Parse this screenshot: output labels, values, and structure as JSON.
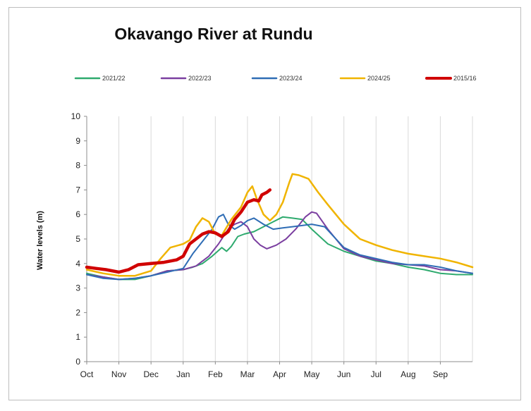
{
  "chart_data": {
    "type": "line",
    "title": "Okavango River at Rundu",
    "xlabel": "",
    "ylabel": "Water levels (m)",
    "ylim": [
      0,
      10
    ],
    "yticks": [
      0,
      1,
      2,
      3,
      4,
      5,
      6,
      7,
      8,
      9,
      10
    ],
    "categories": [
      "Oct",
      "Nov",
      "Dec",
      "Jan",
      "Feb",
      "Mar",
      "Apr",
      "May",
      "Jun",
      "Jul",
      "Aug",
      "Sep"
    ],
    "grid": "vertical",
    "legend_position": "top",
    "x_unit": "months since 1 October",
    "series": [
      {
        "name": "2021/22",
        "color": "#2eaa6e",
        "width": 2,
        "points": [
          [
            0,
            3.6
          ],
          [
            0.5,
            3.45
          ],
          [
            1,
            3.35
          ],
          [
            1.5,
            3.35
          ],
          [
            2,
            3.5
          ],
          [
            2.5,
            3.7
          ],
          [
            3,
            3.75
          ],
          [
            3.3,
            3.85
          ],
          [
            3.6,
            4.0
          ],
          [
            3.9,
            4.3
          ],
          [
            4.2,
            4.65
          ],
          [
            4.35,
            4.5
          ],
          [
            4.5,
            4.7
          ],
          [
            4.7,
            5.1
          ],
          [
            4.9,
            5.2
          ],
          [
            5.2,
            5.3
          ],
          [
            5.5,
            5.5
          ],
          [
            5.8,
            5.7
          ],
          [
            6.1,
            5.9
          ],
          [
            6.4,
            5.85
          ],
          [
            6.7,
            5.8
          ],
          [
            7.0,
            5.4
          ],
          [
            7.5,
            4.8
          ],
          [
            8.0,
            4.5
          ],
          [
            8.5,
            4.3
          ],
          [
            9.0,
            4.1
          ],
          [
            9.5,
            4.0
          ],
          [
            10,
            3.85
          ],
          [
            10.5,
            3.75
          ],
          [
            11,
            3.6
          ],
          [
            11.5,
            3.55
          ],
          [
            12,
            3.55
          ]
        ]
      },
      {
        "name": "2022/23",
        "color": "#7b3fa0",
        "width": 2,
        "points": [
          [
            0,
            3.55
          ],
          [
            0.5,
            3.45
          ],
          [
            1,
            3.35
          ],
          [
            1.5,
            3.4
          ],
          [
            2,
            3.5
          ],
          [
            2.5,
            3.7
          ],
          [
            3,
            3.75
          ],
          [
            3.4,
            3.9
          ],
          [
            3.8,
            4.3
          ],
          [
            4.1,
            4.8
          ],
          [
            4.4,
            5.4
          ],
          [
            4.6,
            5.6
          ],
          [
            4.8,
            5.7
          ],
          [
            5.0,
            5.5
          ],
          [
            5.2,
            5.0
          ],
          [
            5.4,
            4.75
          ],
          [
            5.6,
            4.6
          ],
          [
            5.9,
            4.75
          ],
          [
            6.2,
            5.0
          ],
          [
            6.5,
            5.4
          ],
          [
            6.8,
            5.9
          ],
          [
            7.0,
            6.1
          ],
          [
            7.15,
            6.05
          ],
          [
            7.5,
            5.4
          ],
          [
            8.0,
            4.6
          ],
          [
            8.5,
            4.3
          ],
          [
            9.0,
            4.15
          ],
          [
            9.5,
            4.0
          ],
          [
            10,
            3.95
          ],
          [
            10.5,
            3.9
          ],
          [
            11,
            3.75
          ],
          [
            11.5,
            3.7
          ],
          [
            12,
            3.6
          ]
        ]
      },
      {
        "name": "2023/24",
        "color": "#2f6db5",
        "width": 2,
        "points": [
          [
            0,
            3.55
          ],
          [
            0.5,
            3.4
          ],
          [
            1,
            3.35
          ],
          [
            1.5,
            3.4
          ],
          [
            2,
            3.5
          ],
          [
            2.5,
            3.65
          ],
          [
            3,
            3.8
          ],
          [
            3.3,
            4.4
          ],
          [
            3.6,
            4.9
          ],
          [
            3.9,
            5.4
          ],
          [
            4.1,
            5.9
          ],
          [
            4.25,
            6.0
          ],
          [
            4.4,
            5.6
          ],
          [
            4.6,
            5.4
          ],
          [
            4.8,
            5.55
          ],
          [
            5.0,
            5.75
          ],
          [
            5.2,
            5.85
          ],
          [
            5.5,
            5.6
          ],
          [
            5.8,
            5.4
          ],
          [
            6.1,
            5.45
          ],
          [
            6.4,
            5.5
          ],
          [
            6.7,
            5.55
          ],
          [
            7.0,
            5.6
          ],
          [
            7.4,
            5.5
          ],
          [
            8.0,
            4.65
          ],
          [
            8.5,
            4.35
          ],
          [
            9.0,
            4.2
          ],
          [
            9.5,
            4.05
          ],
          [
            10,
            3.95
          ],
          [
            10.5,
            3.95
          ],
          [
            11,
            3.85
          ],
          [
            11.5,
            3.7
          ],
          [
            12,
            3.6
          ]
        ]
      },
      {
        "name": "2024/25",
        "color": "#f0b400",
        "width": 2.5,
        "points": [
          [
            0,
            3.75
          ],
          [
            0.5,
            3.6
          ],
          [
            1,
            3.5
          ],
          [
            1.5,
            3.5
          ],
          [
            2,
            3.7
          ],
          [
            2.3,
            4.2
          ],
          [
            2.6,
            4.65
          ],
          [
            3.0,
            4.8
          ],
          [
            3.2,
            4.95
          ],
          [
            3.4,
            5.5
          ],
          [
            3.6,
            5.85
          ],
          [
            3.8,
            5.7
          ],
          [
            4.0,
            5.2
          ],
          [
            4.2,
            5.15
          ],
          [
            4.5,
            5.8
          ],
          [
            4.8,
            6.3
          ],
          [
            5.0,
            6.9
          ],
          [
            5.15,
            7.15
          ],
          [
            5.3,
            6.6
          ],
          [
            5.5,
            6.0
          ],
          [
            5.7,
            5.75
          ],
          [
            5.9,
            6.0
          ],
          [
            6.1,
            6.5
          ],
          [
            6.3,
            7.3
          ],
          [
            6.4,
            7.65
          ],
          [
            6.6,
            7.6
          ],
          [
            6.9,
            7.45
          ],
          [
            7.2,
            6.9
          ],
          [
            7.5,
            6.4
          ],
          [
            8.0,
            5.6
          ],
          [
            8.5,
            5.0
          ],
          [
            9.0,
            4.75
          ],
          [
            9.5,
            4.55
          ],
          [
            10,
            4.4
          ],
          [
            10.5,
            4.3
          ],
          [
            11,
            4.2
          ],
          [
            11.5,
            4.05
          ],
          [
            12,
            3.85
          ]
        ]
      },
      {
        "name": "2015/16",
        "color": "#d00000",
        "width": 4.5,
        "points": [
          [
            0,
            3.85
          ],
          [
            0.3,
            3.8
          ],
          [
            0.6,
            3.75
          ],
          [
            1,
            3.65
          ],
          [
            1.3,
            3.75
          ],
          [
            1.6,
            3.95
          ],
          [
            2,
            4.0
          ],
          [
            2.4,
            4.05
          ],
          [
            2.8,
            4.15
          ],
          [
            3.0,
            4.3
          ],
          [
            3.2,
            4.8
          ],
          [
            3.4,
            5.0
          ],
          [
            3.6,
            5.2
          ],
          [
            3.8,
            5.3
          ],
          [
            4.0,
            5.25
          ],
          [
            4.2,
            5.1
          ],
          [
            4.4,
            5.3
          ],
          [
            4.6,
            5.8
          ],
          [
            4.8,
            6.1
          ],
          [
            5.0,
            6.5
          ],
          [
            5.2,
            6.6
          ],
          [
            5.35,
            6.55
          ],
          [
            5.45,
            6.8
          ],
          [
            5.6,
            6.9
          ],
          [
            5.7,
            7.0
          ]
        ]
      }
    ]
  }
}
